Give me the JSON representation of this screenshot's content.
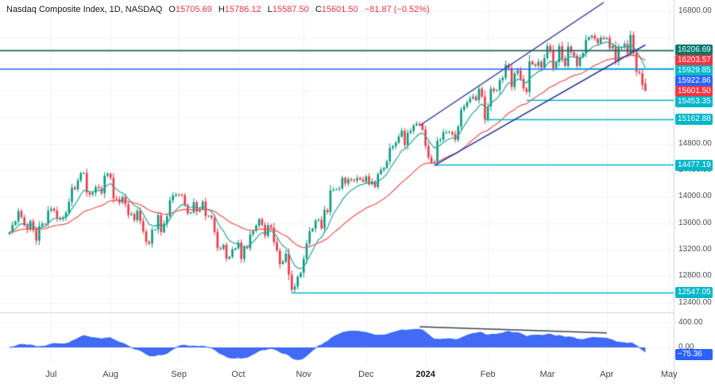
{
  "legend": {
    "title": "Nasdaq Composite Index, 1D, NASDAQ",
    "ohlc_items": [
      {
        "label": "O",
        "value": "15705.69"
      },
      {
        "label": "H",
        "value": "15786.12"
      },
      {
        "label": "L",
        "value": "15587.50"
      },
      {
        "label": "C",
        "value": "15601.50"
      }
    ],
    "change": "−81.87 (−0.52%)"
  },
  "colors": {
    "up": "#089981",
    "down": "#f23645",
    "ma_fast": "#26a69a",
    "ma_slow": "#ef5350",
    "channel": "#283593",
    "cyan": "#00b7c9",
    "teal_dark": "#00796b",
    "blue": "#2962ff",
    "red": "#f23645",
    "indicator_fill": "#3763f4",
    "indicator_trend": "#36454f",
    "grid": "#f0f3fa",
    "text": "#131722"
  },
  "price_axis": {
    "ticks": [
      {
        "label": "16800.00",
        "price": 16800
      },
      {
        "label": "14800.00",
        "price": 14800
      },
      {
        "label": "14400.00",
        "price": 14400
      },
      {
        "label": "14000.00",
        "price": 14000
      },
      {
        "label": "13600.00",
        "price": 13600
      },
      {
        "label": "13200.00",
        "price": 13200
      },
      {
        "label": "12800.00",
        "price": 12800
      },
      {
        "label": "12400.00",
        "price": 12400
      }
    ],
    "badges": [
      {
        "label": "16206.69",
        "price": 16206.69,
        "color": "#00796b"
      },
      {
        "label": "16203.57",
        "price": 16203.57,
        "color": "#f23645"
      },
      {
        "label": "15929.85",
        "price": 15929.85,
        "color": "#00b7c9"
      },
      {
        "label": "15922.86",
        "price": 15922.86,
        "color": "#2962ff"
      },
      {
        "label": "15601.50",
        "price": 15601.5,
        "color": "#f23645"
      },
      {
        "label": "15453.35",
        "price": 15453.35,
        "color": "#00b7c9"
      },
      {
        "label": "15162.88",
        "price": 15162.88,
        "color": "#00b7c9"
      },
      {
        "label": "14477.19",
        "price": 14477.19,
        "color": "#00b7c9"
      },
      {
        "label": "12547.05",
        "price": 12547.05,
        "color": "#00b7c9"
      }
    ]
  },
  "indicator_axis": {
    "ticks": [
      {
        "label": "400.00",
        "value": 400
      },
      {
        "label": "0.00",
        "value": 0
      }
    ],
    "badge": {
      "label": "−75.36",
      "value": -75.36,
      "color": "#2962ff"
    }
  },
  "time_axis": {
    "labels": [
      {
        "label": "Jul",
        "day": 14,
        "bold": false
      },
      {
        "label": "Aug",
        "day": 34,
        "bold": false
      },
      {
        "label": "Sep",
        "day": 57,
        "bold": false
      },
      {
        "label": "Oct",
        "day": 77,
        "bold": false
      },
      {
        "label": "Nov",
        "day": 99,
        "bold": false
      },
      {
        "label": "Dec",
        "day": 120,
        "bold": false
      },
      {
        "label": "2024",
        "day": 140,
        "bold": true
      },
      {
        "label": "Feb",
        "day": 161,
        "bold": false
      },
      {
        "label": "Mar",
        "day": 181,
        "bold": false
      },
      {
        "label": "Apr",
        "day": 201,
        "bold": false
      },
      {
        "label": "May",
        "day": 222,
        "bold": false
      }
    ]
  },
  "chart_data": {
    "type": "candlestick",
    "title": "Nasdaq Composite Index",
    "interval": "1D",
    "exchange": "NASDAQ",
    "price_range": [
      12252,
      16968
    ],
    "grid_step": 400,
    "closes": [
      13462,
      13573,
      13626,
      13782,
      13689,
      13567,
      13502,
      13630,
      13493,
      13335,
      13556,
      13592,
      13591,
      13788,
      13817,
      13791,
      13679,
      13661,
      13685,
      13760,
      13919,
      14138,
      14113,
      14245,
      14354,
      14358,
      14063,
      14033,
      14059,
      14145,
      14127,
      14050,
      14317,
      14346,
      14284,
      13973,
      13959,
      13909,
      13994,
      13884,
      13722,
      13737,
      13645,
      13788,
      13631,
      13474,
      13317,
      13291,
      13498,
      13505,
      13721,
      13464,
      13591,
      13705,
      13944,
      14020,
      14035,
      14032,
      14021,
      13872,
      13749,
      13762,
      13917,
      13774,
      13814,
      13926,
      13708,
      13710,
      13678,
      13469,
      13224,
      13212,
      13272,
      13064,
      13092,
      13201,
      13219,
      13307,
      13059,
      13236,
      13220,
      13431,
      13484,
      13562,
      13659,
      13574,
      13407,
      13567,
      13533,
      13314,
      13186,
      12983,
      13018,
      13139,
      12821,
      12595,
      12643,
      12789,
      12851,
      13061,
      13294,
      13478,
      13518,
      13639,
      13650,
      13521,
      13798,
      13767,
      14094,
      14103,
      14113,
      14125,
      14284,
      14199,
      14265,
      14250,
      14241,
      14281,
      14258,
      14226,
      14305,
      14185,
      14230,
      14146,
      14340,
      14404,
      14432,
      14533,
      14734,
      14762,
      14814,
      14905,
      14995,
      14778,
      14964,
      14993,
      15075,
      15099,
      15095,
      15011,
      14766,
      14592,
      14510,
      14524,
      14844,
      14858,
      14970,
      14970,
      14973,
      14944,
      14856,
      15056,
      15311,
      15360,
      15426,
      15482,
      15510,
      15455,
      15628,
      15510,
      15164,
      15361,
      15629,
      15597,
      15609,
      15756,
      15793,
      15991,
      15942,
      15655,
      15859,
      15906,
      15776,
      15631,
      15580,
      16042,
      15997,
      15976,
      16035,
      15948,
      16092,
      16275,
      16207,
      15939,
      16032,
      16273,
      16085,
      15972,
      16266,
      16177,
      16128,
      15973,
      16103,
      16166,
      16369,
      16401,
      16428,
      16384,
      16315,
      16399,
      16379,
      16396,
      16240,
      16277,
      16049,
      16248,
      16253,
      16306,
      16170,
      16442,
      16175,
      15885,
      15865,
      15683,
      15601.5
    ],
    "last_candle": {
      "open": 15705.69,
      "high": 15786.12,
      "low": 15587.5,
      "close": 15601.5
    },
    "levels": [
      {
        "price": 16203.57,
        "color": "#f23645",
        "from_day": 0
      },
      {
        "price": 16206.69,
        "color": "#00796b",
        "from_day": 0
      },
      {
        "price": 15922.86,
        "color": "#2962ff",
        "from_day": 0
      },
      {
        "price": 15929.85,
        "color": "#00b7c9",
        "from_day": 183
      },
      {
        "price": 15453.35,
        "color": "#00b7c9",
        "from_day": 174
      },
      {
        "price": 15162.88,
        "color": "#00b7c9",
        "from_day": 160
      },
      {
        "price": 14477.19,
        "color": "#00b7c9",
        "from_day": 143
      },
      {
        "price": 12547.05,
        "color": "#00b7c9",
        "from_day": 95
      }
    ],
    "trendlines": [
      {
        "from": [
          138,
          15072
        ],
        "to": [
          200,
          16932
        ],
        "color": "#283593"
      },
      {
        "from": [
          143,
          14470
        ],
        "to": [
          214,
          16290
        ],
        "color": "#283593"
      }
    ],
    "moving_averages": [
      {
        "period": 9,
        "color": "#26a69a"
      },
      {
        "period": 34,
        "color": "#ef5350"
      }
    ],
    "indicator": {
      "type": "macd-line",
      "fast": 12,
      "slow": 26,
      "range": [
        -284,
        568
      ],
      "last_value": -75.36,
      "trendline": {
        "from": [
          138,
          335
        ],
        "to": [
          201,
          235
        ],
        "color": "#36454f"
      }
    }
  }
}
